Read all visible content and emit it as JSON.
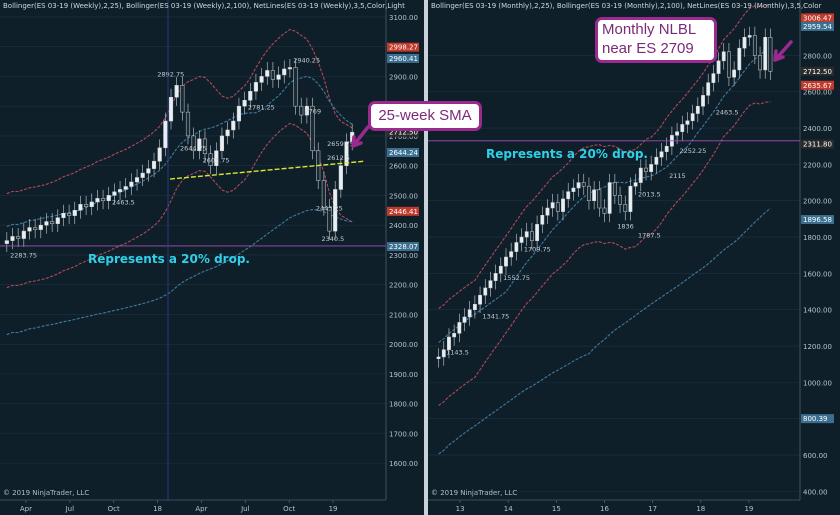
{
  "chart_data": [
    {
      "type": "candlestick",
      "panel": "weekly",
      "header": "Bollinger(ES 03-19 (Weekly),2,25), Bollinger(ES 03-19 (Weekly),2,100), NetLines(ES 03-19 (Weekly),3,5,Color,Light",
      "copyright": "© 2019 NinjaTrader, LLC",
      "x_tick_labels": [
        "Apr",
        "Jul",
        "Oct",
        "18",
        "Apr",
        "Jul",
        "Oct",
        "19"
      ],
      "y_tick_labels": [
        "1600.00",
        "1700.00",
        "1800.00",
        "1900.00",
        "2000.00",
        "2100.00",
        "2200.00",
        "2300.00",
        "2400.00",
        "2500.00",
        "2600.00",
        "2700.00",
        "2800.00",
        "2900.00",
        "3000.00",
        "3100.00"
      ],
      "ylim": [
        1550,
        3130
      ],
      "price_markers": [
        {
          "value": 2998.27,
          "label": "2998.27",
          "color": "#c0392b"
        },
        {
          "value": 2960.41,
          "label": "2960.41",
          "color": "#3a6f8f"
        },
        {
          "value": 2712.5,
          "label": "2712.50",
          "color": "#2b2b2b"
        },
        {
          "value": 2644.24,
          "label": "2644.24",
          "color": "#3a6f8f"
        },
        {
          "value": 2446.41,
          "label": "2446.41",
          "color": "#c0392b"
        },
        {
          "value": 2328.07,
          "label": "2328.07",
          "color": "#3a6f8f"
        }
      ],
      "level_labels": [
        {
          "value": 2892.75,
          "label": "2892.75",
          "i": 28
        },
        {
          "value": 2940.25,
          "label": "2940.25",
          "i": 52
        },
        {
          "value": 2612.5,
          "label": "2612.5",
          "i": 58
        },
        {
          "value": 2443.25,
          "label": "2443.25",
          "i": 56
        },
        {
          "value": 2340.5,
          "label": "2340.5",
          "i": 57
        },
        {
          "value": 2603.75,
          "label": "2603.75",
          "i": 36
        },
        {
          "value": 2283.75,
          "label": "2283.75",
          "i": 2
        },
        {
          "value": 2769,
          "label": "2769",
          "i": 54
        },
        {
          "value": 2659.75,
          "label": "2659.75",
          "i": 58
        },
        {
          "value": 2781.25,
          "label": "2781.25",
          "i": 44
        },
        {
          "value": 2644.75,
          "label": "2644.75",
          "i": 32
        },
        {
          "value": 2463.5,
          "label": "2463.5",
          "i": 20
        }
      ],
      "twenty_pct_line": {
        "value": 2330,
        "label": "Represents a 20% drop."
      },
      "sma_trendline": {
        "from": 2555,
        "to": 2615
      },
      "closes": [
        2348,
        2362,
        2355,
        2380,
        2392,
        2385,
        2400,
        2412,
        2405,
        2425,
        2440,
        2432,
        2450,
        2470,
        2462,
        2478,
        2490,
        2482,
        2500,
        2512,
        2520,
        2530,
        2545,
        2560,
        2575,
        2590,
        2615,
        2660,
        2750,
        2830,
        2870,
        2780,
        2700,
        2650,
        2690,
        2640,
        2600,
        2650,
        2700,
        2720,
        2750,
        2800,
        2820,
        2850,
        2880,
        2900,
        2920,
        2890,
        2905,
        2925,
        2930,
        2800,
        2770,
        2800,
        2650,
        2550,
        2460,
        2380,
        2520,
        2600,
        2680,
        2712.5
      ]
    },
    {
      "type": "candlestick",
      "panel": "monthly",
      "header": "Bollinger(ES 03-19 (Monthly),2,25), Bollinger(ES 03-19 (Monthly),2,100), NetLines(ES 03-19 (Monthly),3,5,Color",
      "copyright": "© 2019 NinjaTrader, LLC",
      "x_tick_labels": [
        "13",
        "14",
        "15",
        "16",
        "17",
        "18",
        "19"
      ],
      "y_tick_labels": [
        "400.00",
        "600.00",
        "800.00",
        "1000.00",
        "1200.00",
        "1400.00",
        "1600.00",
        "1800.00",
        "2000.00",
        "2200.00",
        "2400.00",
        "2600.00",
        "2800.00"
      ],
      "ylim": [
        380,
        3050
      ],
      "price_markers": [
        {
          "value": 3006.47,
          "label": "3006.47",
          "color": "#c0392b"
        },
        {
          "value": 2959.54,
          "label": "2959.54",
          "color": "#3a6f8f"
        },
        {
          "value": 2712.5,
          "label": "2712.50",
          "color": "#2b2b2b"
        },
        {
          "value": 2635.67,
          "label": "2635.67",
          "color": "#c0392b"
        },
        {
          "value": 2311.8,
          "label": "2311.80",
          "color": "#2b2b2b"
        },
        {
          "value": 1896.58,
          "label": "1896.58",
          "color": "#3a6f8f"
        },
        {
          "value": 800.39,
          "label": "800.39",
          "color": "#3a6f8f"
        }
      ],
      "level_labels": [
        {
          "value": 2252.25,
          "label": "2252.25",
          "i": 48
        },
        {
          "value": 2115,
          "label": "2115",
          "i": 46
        },
        {
          "value": 1836,
          "label": "1836",
          "i": 36
        },
        {
          "value": 1787.5,
          "label": "1787.5",
          "i": 40
        },
        {
          "value": 1552.75,
          "label": "1552.75",
          "i": 14
        },
        {
          "value": 1341.75,
          "label": "1341.75",
          "i": 10
        },
        {
          "value": 1143.5,
          "label": "1143.5",
          "i": 3
        },
        {
          "value": 1709.75,
          "label": "1709.75",
          "i": 18
        },
        {
          "value": 2013.5,
          "label": "2013.5",
          "i": 40
        },
        {
          "value": 2463.5,
          "label": "2463.5",
          "i": 55
        }
      ],
      "twenty_pct_line": {
        "value": 2330,
        "label": "Represents a 20% drop."
      },
      "closes": [
        1140,
        1180,
        1250,
        1270,
        1330,
        1360,
        1400,
        1430,
        1480,
        1520,
        1560,
        1600,
        1640,
        1690,
        1720,
        1770,
        1800,
        1830,
        1780,
        1870,
        1920,
        1960,
        1990,
        1940,
        2010,
        2050,
        2070,
        2100,
        2080,
        2000,
        2060,
        1960,
        1930,
        2100,
        2030,
        1980,
        1940,
        2080,
        2100,
        2180,
        2160,
        2200,
        2240,
        2270,
        2300,
        2360,
        2380,
        2420,
        2440,
        2480,
        2520,
        2580,
        2650,
        2700,
        2770,
        2820,
        2680,
        2720,
        2840,
        2900,
        2910,
        2800,
        2720,
        2900,
        2712.5
      ]
    }
  ],
  "annotations": {
    "sma_callout": "25-week SMA",
    "nlbl_callout_line1": "Monthly NLBL",
    "nlbl_callout_line2": "near ES 2709"
  }
}
